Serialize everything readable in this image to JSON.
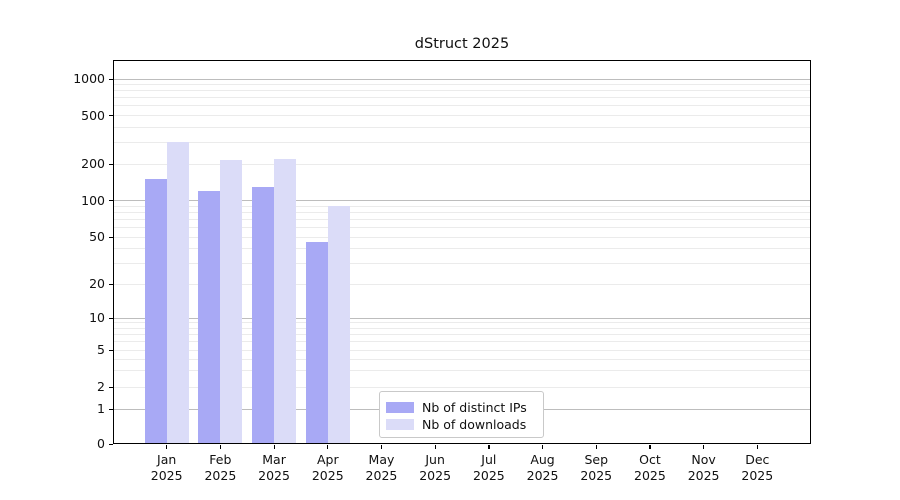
{
  "title": "dStruct 2025",
  "year_label": "2025",
  "chart_data": {
    "type": "bar",
    "title": "dStruct 2025",
    "xlabel": "",
    "ylabel": "",
    "y_scale": "symlog",
    "y_ticks": [
      0,
      1,
      2,
      5,
      10,
      20,
      50,
      100,
      200,
      500,
      1000
    ],
    "ylim": [
      0,
      1400
    ],
    "grid": true,
    "legend_position": "bottom-center",
    "categories": [
      "Jan",
      "Feb",
      "Mar",
      "Apr",
      "May",
      "Jun",
      "Jul",
      "Aug",
      "Sep",
      "Oct",
      "Nov",
      "Dec"
    ],
    "category_year": "2025",
    "series": [
      {
        "name": "Nb of distinct IPs",
        "color": "#a8a9f5",
        "values": [
          150,
          120,
          130,
          45,
          0,
          0,
          0,
          0,
          0,
          0,
          0,
          0
        ]
      },
      {
        "name": "Nb of downloads",
        "color": "#dbdcf8",
        "values": [
          305,
          215,
          220,
          90,
          0,
          0,
          0,
          0,
          0,
          0,
          0,
          0
        ]
      }
    ]
  },
  "colors": {
    "major_grid": "#bdbdbd",
    "minor_grid": "#ebebeb",
    "axis": "#000000",
    "text": "#111111",
    "background": "#ffffff"
  }
}
